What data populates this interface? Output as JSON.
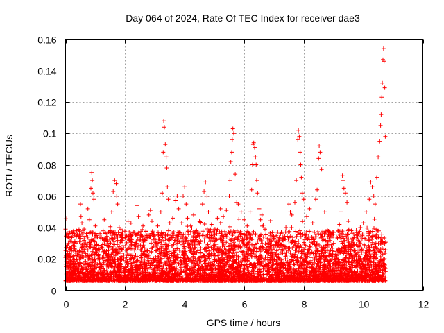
{
  "chart_data": {
    "type": "scatter",
    "title": "Day 064 of 2024, Rate Of TEC Index for receiver dae3",
    "xlabel": "GPS time / hours",
    "ylabel": "ROTI / TECUs",
    "xlim": [
      0,
      12
    ],
    "ylim": [
      0,
      0.16
    ],
    "xticks": [
      0,
      2,
      4,
      6,
      8,
      10,
      12
    ],
    "yticks": [
      0,
      0.02,
      0.04,
      0.06,
      0.08,
      0.1,
      0.12,
      0.14,
      0.16
    ],
    "xtick_labels": [
      "0",
      "2",
      "4",
      "6",
      "8",
      "10",
      "12"
    ],
    "ytick_labels": [
      "0",
      "0.02",
      "0.04",
      "0.06",
      "0.08",
      "0.1",
      "0.12",
      "0.14",
      "0.16"
    ],
    "grid": true,
    "marker": "+",
    "color": "#ff0000",
    "data_extent_hours": [
      0,
      10.75
    ],
    "series": [
      {
        "name": "ROTI",
        "points": [
          [
            0.0,
            0.039
          ],
          [
            0.05,
            0.012
          ],
          [
            0.1,
            0.022
          ],
          [
            0.15,
            0.016
          ],
          [
            0.2,
            0.025
          ],
          [
            0.25,
            0.014
          ],
          [
            0.3,
            0.028
          ],
          [
            0.4,
            0.018
          ],
          [
            0.5,
            0.055
          ],
          [
            0.52,
            0.047
          ],
          [
            0.55,
            0.043
          ],
          [
            0.6,
            0.021
          ],
          [
            0.7,
            0.036
          ],
          [
            0.75,
            0.052
          ],
          [
            0.8,
            0.045
          ],
          [
            0.85,
            0.065
          ],
          [
            0.88,
            0.075
          ],
          [
            0.9,
            0.07
          ],
          [
            0.92,
            0.062
          ],
          [
            0.95,
            0.058
          ],
          [
            1.0,
            0.041
          ],
          [
            1.1,
            0.023
          ],
          [
            1.2,
            0.034
          ],
          [
            1.3,
            0.045
          ],
          [
            1.4,
            0.031
          ],
          [
            1.5,
            0.038
          ],
          [
            1.55,
            0.05
          ],
          [
            1.6,
            0.063
          ],
          [
            1.65,
            0.07
          ],
          [
            1.7,
            0.068
          ],
          [
            1.72,
            0.06
          ],
          [
            1.75,
            0.055
          ],
          [
            1.8,
            0.04
          ],
          [
            1.9,
            0.026
          ],
          [
            2.0,
            0.034
          ],
          [
            2.1,
            0.044
          ],
          [
            2.2,
            0.029
          ],
          [
            2.3,
            0.037
          ],
          [
            2.4,
            0.054
          ],
          [
            2.45,
            0.047
          ],
          [
            2.5,
            0.032
          ],
          [
            2.6,
            0.041
          ],
          [
            2.7,
            0.034
          ],
          [
            2.8,
            0.048
          ],
          [
            2.85,
            0.051
          ],
          [
            2.9,
            0.044
          ],
          [
            3.0,
            0.035
          ],
          [
            3.1,
            0.041
          ],
          [
            3.2,
            0.05
          ],
          [
            3.25,
            0.062
          ],
          [
            3.28,
            0.088
          ],
          [
            3.3,
            0.108
          ],
          [
            3.32,
            0.104
          ],
          [
            3.35,
            0.093
          ],
          [
            3.38,
            0.085
          ],
          [
            3.4,
            0.078
          ],
          [
            3.42,
            0.066
          ],
          [
            3.45,
            0.058
          ],
          [
            3.5,
            0.043
          ],
          [
            3.6,
            0.046
          ],
          [
            3.7,
            0.057
          ],
          [
            3.75,
            0.06
          ],
          [
            3.8,
            0.052
          ],
          [
            3.9,
            0.043
          ],
          [
            3.95,
            0.06
          ],
          [
            4.0,
            0.066
          ],
          [
            4.05,
            0.055
          ],
          [
            4.1,
            0.046
          ],
          [
            4.2,
            0.041
          ],
          [
            4.3,
            0.048
          ],
          [
            4.4,
            0.038
          ],
          [
            4.5,
            0.044
          ],
          [
            4.6,
            0.055
          ],
          [
            4.65,
            0.063
          ],
          [
            4.7,
            0.069
          ],
          [
            4.75,
            0.06
          ],
          [
            4.8,
            0.05
          ],
          [
            4.9,
            0.042
          ],
          [
            5.0,
            0.034
          ],
          [
            5.1,
            0.046
          ],
          [
            5.2,
            0.052
          ],
          [
            5.3,
            0.047
          ],
          [
            5.4,
            0.051
          ],
          [
            5.5,
            0.06
          ],
          [
            5.52,
            0.07
          ],
          [
            5.55,
            0.082
          ],
          [
            5.58,
            0.088
          ],
          [
            5.6,
            0.096
          ],
          [
            5.62,
            0.103
          ],
          [
            5.65,
            0.1
          ],
          [
            5.7,
            0.074
          ],
          [
            5.75,
            0.056
          ],
          [
            5.8,
            0.055
          ],
          [
            5.9,
            0.05
          ],
          [
            6.0,
            0.045
          ],
          [
            6.1,
            0.041
          ],
          [
            6.2,
            0.05
          ],
          [
            6.25,
            0.064
          ],
          [
            6.28,
            0.08
          ],
          [
            6.3,
            0.093
          ],
          [
            6.32,
            0.094
          ],
          [
            6.35,
            0.091
          ],
          [
            6.38,
            0.085
          ],
          [
            6.4,
            0.08
          ],
          [
            6.42,
            0.07
          ],
          [
            6.45,
            0.062
          ],
          [
            6.5,
            0.052
          ],
          [
            6.55,
            0.045
          ],
          [
            6.6,
            0.048
          ],
          [
            6.7,
            0.039
          ],
          [
            6.8,
            0.028
          ],
          [
            6.9,
            0.032
          ],
          [
            7.0,
            0.027
          ],
          [
            7.1,
            0.03
          ],
          [
            7.2,
            0.026
          ],
          [
            7.3,
            0.034
          ],
          [
            7.4,
            0.04
          ],
          [
            7.5,
            0.055
          ],
          [
            7.55,
            0.05
          ],
          [
            7.6,
            0.048
          ],
          [
            7.7,
            0.056
          ],
          [
            7.75,
            0.07
          ],
          [
            7.8,
            0.096
          ],
          [
            7.82,
            0.102
          ],
          [
            7.85,
            0.098
          ],
          [
            7.88,
            0.088
          ],
          [
            7.9,
            0.08
          ],
          [
            7.92,
            0.072
          ],
          [
            7.95,
            0.062
          ],
          [
            8.0,
            0.058
          ],
          [
            8.1,
            0.047
          ],
          [
            8.2,
            0.052
          ],
          [
            8.3,
            0.043
          ],
          [
            8.4,
            0.058
          ],
          [
            8.45,
            0.064
          ],
          [
            8.5,
            0.084
          ],
          [
            8.52,
            0.092
          ],
          [
            8.55,
            0.088
          ],
          [
            8.6,
            0.077
          ],
          [
            8.7,
            0.05
          ],
          [
            8.8,
            0.038
          ],
          [
            8.9,
            0.035
          ],
          [
            9.0,
            0.03
          ],
          [
            9.1,
            0.034
          ],
          [
            9.2,
            0.042
          ],
          [
            9.25,
            0.05
          ],
          [
            9.3,
            0.073
          ],
          [
            9.32,
            0.07
          ],
          [
            9.35,
            0.065
          ],
          [
            9.4,
            0.062
          ],
          [
            9.45,
            0.056
          ],
          [
            9.5,
            0.044
          ],
          [
            9.6,
            0.038
          ],
          [
            9.7,
            0.034
          ],
          [
            9.8,
            0.035
          ],
          [
            9.9,
            0.04
          ],
          [
            10.0,
            0.043
          ],
          [
            10.1,
            0.05
          ],
          [
            10.2,
            0.058
          ],
          [
            10.25,
            0.069
          ],
          [
            10.3,
            0.066
          ],
          [
            10.35,
            0.06
          ],
          [
            10.4,
            0.055
          ],
          [
            10.45,
            0.072
          ],
          [
            10.5,
            0.085
          ],
          [
            10.55,
            0.095
          ],
          [
            10.58,
            0.105
          ],
          [
            10.6,
            0.112
          ],
          [
            10.62,
            0.123
          ],
          [
            10.64,
            0.132
          ],
          [
            10.66,
            0.147
          ],
          [
            10.68,
            0.154
          ],
          [
            10.7,
            0.146
          ],
          [
            10.72,
            0.129
          ],
          [
            10.74,
            0.098
          ]
        ]
      }
    ]
  }
}
